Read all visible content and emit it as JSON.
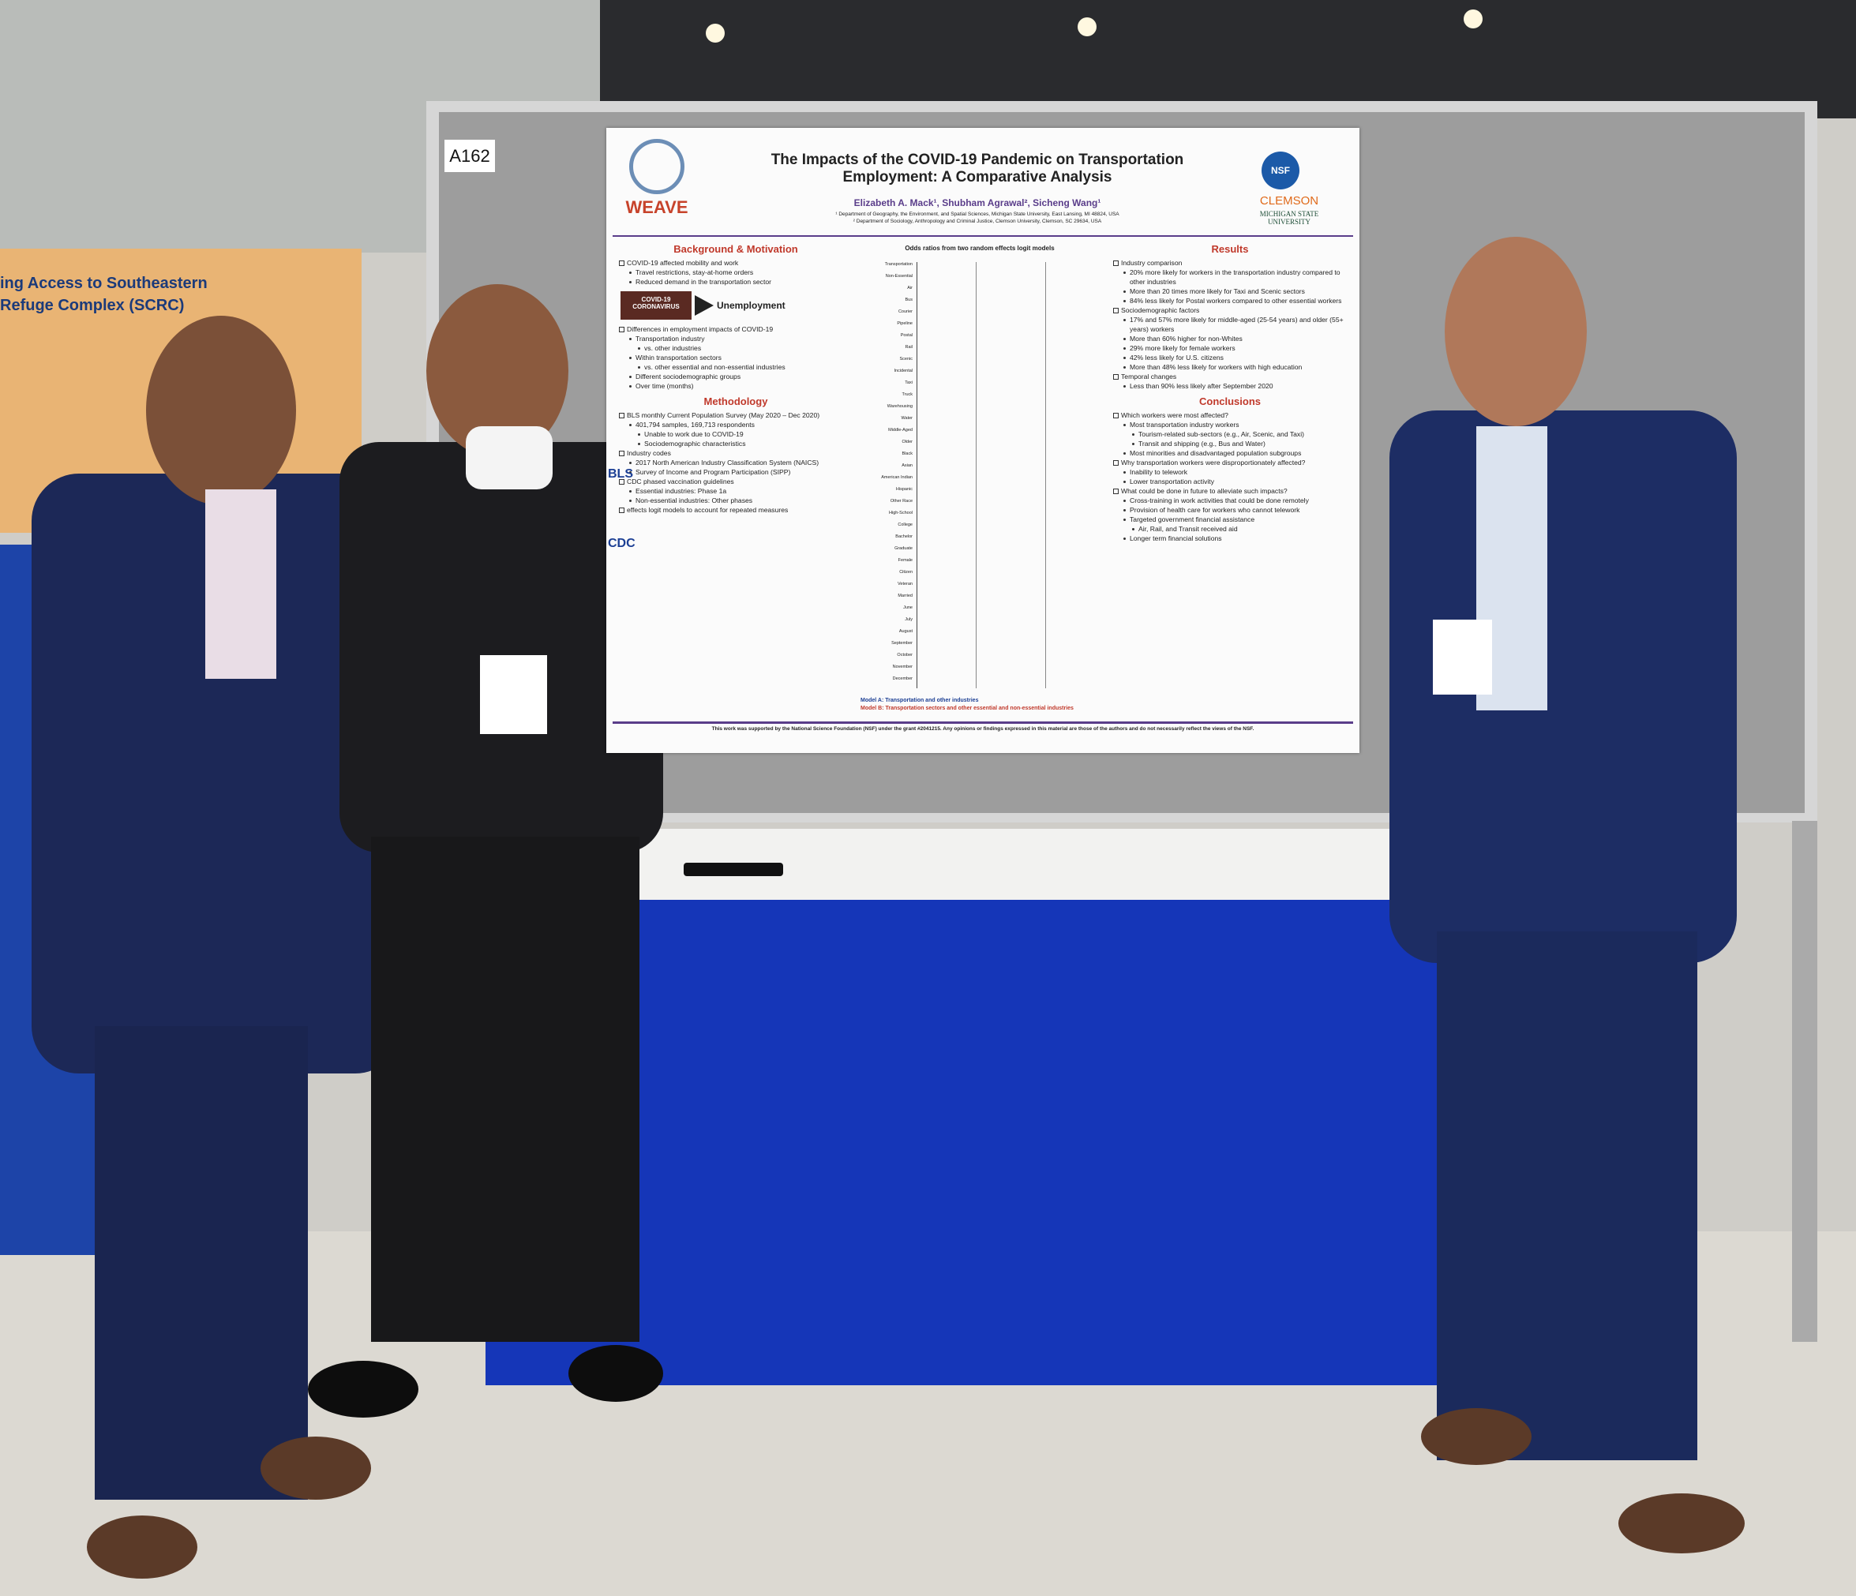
{
  "booth": "A162",
  "background_poster": {
    "title_lines": [
      "ing Access to Southeastern",
      "Refuge Complex (SCRC)"
    ]
  },
  "poster": {
    "title": "The Impacts of the COVID-19 Pandemic on Transportation Employment: A Comparative Analysis",
    "authors": "Elizabeth A. Mack¹, Shubham Agrawal², Sicheng Wang¹",
    "affiliations": [
      "¹ Department of Geography, the Environment, and Spatial Sciences, Michigan State University, East Lansing, MI 48824, USA",
      "² Department of Sociology, Anthropology and Criminal Justice, Clemson University, Clemson, SC 29634, USA"
    ],
    "logos": {
      "left": "WEAVE",
      "nsf": "NSF",
      "clemson": "CLEMSON",
      "msu": "MICHIGAN STATE UNIVERSITY"
    },
    "covid_label": "COVID-19 CORONAVIRUS",
    "arrow_label": "Unemployment",
    "left_sections": [
      {
        "heading": "Background & Motivation",
        "items": [
          {
            "text": "COVID-19 affected mobility and work",
            "sub": [
              "Travel restrictions, stay-at-home orders",
              "Reduced demand in the transportation sector"
            ]
          },
          {
            "text": "Differences in employment impacts of COVID-19",
            "sub": [
              {
                "text": "Transportation industry",
                "sub": [
                  "vs. other industries"
                ]
              },
              {
                "text": "Within transportation sectors",
                "sub": [
                  "vs. other essential and non-essential industries"
                ]
              },
              "Different sociodemographic groups",
              "Over time (months)"
            ]
          }
        ]
      },
      {
        "heading": "Methodology",
        "items": [
          {
            "text": "BLS monthly Current Population Survey (May 2020 – Dec 2020)",
            "sub": [
              {
                "text": "401,794 samples, 169,713 respondents",
                "sub": [
                  "Unable to work due to COVID-19",
                  "Sociodemographic characteristics"
                ]
              }
            ]
          },
          {
            "text": "Industry codes",
            "sub": [
              "2017 North American Industry Classification System (NAICS)",
              "Survey of Income and Program Participation (SIPP)"
            ]
          },
          {
            "text": "CDC phased vaccination guidelines",
            "sub": [
              "Essential industries: Phase 1a",
              "Non-essential industries: Other phases"
            ]
          },
          "effects logit models to account for repeated measures"
        ]
      }
    ],
    "method_logos": [
      "BLS",
      "CDC"
    ],
    "chart": {
      "title": "Odds ratios from two random effects logit models",
      "labels": [
        "Transportation",
        "Non-Essential",
        "Air",
        "Bus",
        "Courier",
        "Pipeline",
        "Postal",
        "Rail",
        "Scenic",
        "Incidental",
        "Taxi",
        "Truck",
        "Warehousing",
        "Water",
        "Middle-Aged",
        "Older",
        "Black",
        "Asian",
        "American Indian",
        "Hispanic",
        "Other Race",
        "High-School",
        "College",
        "Bachelor",
        "Graduate",
        "Female",
        "Citizen",
        "Veteran",
        "Married",
        "June",
        "July",
        "August",
        "September",
        "October",
        "November",
        "December"
      ],
      "legend": [
        "Model A: Transportation and other industries",
        "Model B: Transportation sectors and other essential and non-essential industries"
      ]
    },
    "right_sections": [
      {
        "heading": "Results",
        "items": [
          {
            "text": "Industry comparison",
            "sub": [
              "20% more likely for workers in the transportation industry compared to other industries",
              "More than 20 times more likely for Taxi and Scenic sectors",
              "84% less likely for Postal workers compared to other essential workers"
            ]
          },
          {
            "text": "Sociodemographic factors",
            "sub": [
              "17% and 57% more likely for middle-aged (25-54 years) and older (55+ years) workers",
              "More than 60% higher for non-Whites",
              "29% more likely for female workers",
              "42% less likely for U.S. citizens",
              "More than 48% less likely for workers with high education"
            ]
          },
          {
            "text": "Temporal changes",
            "sub": [
              "Less than 90% less likely after September 2020"
            ]
          }
        ]
      },
      {
        "heading": "Conclusions",
        "items": [
          {
            "text": "Which workers were most affected?",
            "sub": [
              {
                "text": "Most transportation industry workers",
                "sub": [
                  "Tourism-related sub-sectors (e.g., Air, Scenic, and Taxi)",
                  "Transit and shipping (e.g., Bus and Water)"
                ]
              },
              "Most minorities and disadvantaged population subgroups"
            ]
          },
          {
            "text": "Why transportation workers were disproportionately affected?",
            "sub": [
              "Inability to telework",
              "Lower transportation activity"
            ]
          },
          {
            "text": "What could be done in future to alleviate such impacts?",
            "sub": [
              "Cross-training in work activities that could be done remotely",
              "Provision of health care for workers who cannot telework",
              {
                "text": "Targeted government financial assistance",
                "sub": [
                  "Air, Rail, and Transit received aid"
                ]
              },
              "Longer term financial solutions"
            ]
          }
        ]
      }
    ],
    "footer": "This work was supported by the National Science Foundation (NSF) under the grant #2041215. Any opinions or findings expressed in this material are those of the authors and do not necessarily reflect the views of the NSF."
  }
}
